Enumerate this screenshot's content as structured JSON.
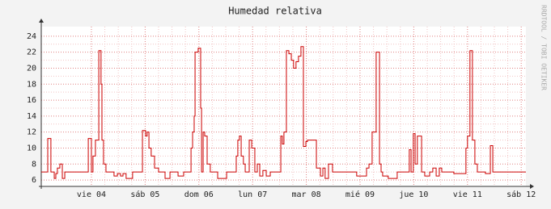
{
  "chart_data": {
    "type": "line",
    "title": "Humedad relativa",
    "watermark": "RRDTOOL / TOBI OETIKER",
    "step": true,
    "grid": true,
    "color": "#cc0000",
    "xlim": [
      -22.4,
      194.1
    ],
    "xticks": [
      {
        "value": 0,
        "label": "vie 04"
      },
      {
        "value": 24,
        "label": "sáb 05"
      },
      {
        "value": 48,
        "label": "dom 06"
      },
      {
        "value": 72,
        "label": "lun 07"
      },
      {
        "value": 96,
        "label": "mar 08"
      },
      {
        "value": 120,
        "label": "mié 09"
      },
      {
        "value": 144,
        "label": "jue 10"
      },
      {
        "value": 168,
        "label": "vie 11"
      },
      {
        "value": 192,
        "label": "sáb 12"
      }
    ],
    "ylim": [
      5.2,
      25.2
    ],
    "yticks": [
      6,
      8,
      10,
      12,
      14,
      16,
      18,
      20,
      22,
      24
    ],
    "x": [
      -22.4,
      -19.5,
      -18.1,
      -16.6,
      -15.9,
      -15.2,
      -14.1,
      -13.0,
      -11.9,
      -1.4,
      0,
      0.7,
      1.8,
      3.3,
      4.3,
      4.7,
      5.4,
      6.5,
      10.1,
      11.6,
      13.0,
      14.1,
      15.5,
      18.4,
      22.8,
      24.2,
      24.9,
      25.7,
      26.7,
      28.2,
      30.0,
      32.9,
      35.1,
      38.7,
      41.2,
      44.5,
      45.2,
      45.9,
      46.3,
      47.7,
      48.8,
      49.2,
      49.9,
      50.6,
      51.7,
      53.1,
      56.4,
      60.4,
      64.7,
      65.4,
      66.1,
      66.9,
      67.9,
      68.7,
      70.5,
      71.6,
      73.0,
      74.1,
      75.2,
      76.6,
      78.1,
      79.9,
      84.6,
      85.3,
      86.0,
      87.1,
      88.2,
      89.3,
      90.3,
      91.4,
      92.5,
      93.6,
      94.7,
      95.8,
      96.5,
      100.5,
      102.3,
      103.4,
      104.4,
      105.9,
      107.7,
      118.5,
      122.9,
      124.0,
      125.4,
      127.2,
      128.7,
      129.4,
      130.1,
      132.6,
      136.6,
      142.0,
      142.8,
      143.8,
      144.6,
      145.6,
      147.5,
      148.9,
      151.1,
      152.5,
      154.0,
      155.4,
      156.5,
      161.9,
      167.3,
      168.0,
      169.1,
      170.2,
      171.3,
      172.4,
      173.5,
      176.0,
      178.2,
      179.3,
      194.1
    ],
    "series": [
      {
        "name": "Humedad",
        "values": [
          7,
          11.2,
          7,
          6.2,
          6.8,
          7.5,
          8,
          6.2,
          7,
          11.2,
          7,
          9,
          11,
          22.2,
          18,
          11,
          8,
          7,
          6.5,
          6.8,
          6.5,
          6.8,
          6.2,
          7,
          12.2,
          11.5,
          12,
          10,
          9,
          7.5,
          7,
          6.2,
          7,
          6.5,
          7,
          10,
          12,
          14,
          22,
          22.5,
          15,
          7,
          12,
          11.5,
          8,
          7,
          6.2,
          7,
          9,
          11,
          11.5,
          9,
          8,
          7,
          11,
          10,
          7,
          8,
          6.5,
          7.2,
          6.5,
          7,
          11.5,
          10.5,
          12,
          22.2,
          21.8,
          21,
          20,
          20.8,
          21.5,
          22.7,
          10.2,
          10.8,
          11,
          7.5,
          6.5,
          7.5,
          6.2,
          8,
          7,
          6.5,
          7.5,
          8,
          12,
          22,
          8,
          7,
          6.5,
          6.2,
          7,
          9.8,
          7,
          11.8,
          8,
          11.5,
          7,
          6.5,
          7,
          7.5,
          6.5,
          7.5,
          7,
          6.8,
          10,
          11.5,
          22.2,
          11,
          8,
          7,
          7,
          6.8,
          10.3,
          7,
          7
        ]
      }
    ]
  }
}
